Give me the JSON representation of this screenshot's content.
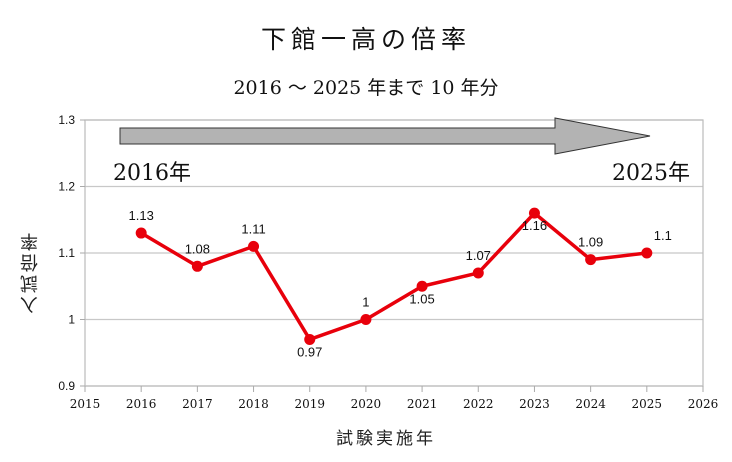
{
  "chart_data": {
    "type": "line",
    "title": "下館一高の倍率",
    "subtitle": "2016 ～ 2025 年まで 10 年分",
    "xlabel": "試験実施年",
    "ylabel": "入試倍率",
    "x": [
      2016,
      2017,
      2018,
      2019,
      2020,
      2021,
      2022,
      2023,
      2024,
      2025
    ],
    "series": [
      {
        "name": "入試倍率",
        "values": [
          1.13,
          1.08,
          1.11,
          0.97,
          1.0,
          1.05,
          1.07,
          1.16,
          1.09,
          1.1
        ],
        "color": "#e8000b"
      }
    ],
    "data_labels": [
      "1.13",
      "1.08",
      "1.11",
      "0.97",
      "1",
      "1.05",
      "1.07",
      "1.16",
      "1.09",
      "1.1"
    ],
    "xlim": [
      2015,
      2026
    ],
    "ylim": [
      0.9,
      1.3
    ],
    "x_ticks": [
      "2015",
      "2016",
      "2017",
      "2018",
      "2019",
      "2020",
      "2021",
      "2022",
      "2023",
      "2024",
      "2025",
      "2026"
    ],
    "y_ticks": [
      "0.9",
      "1",
      "1.1",
      "1.2",
      "1.3"
    ],
    "grid": true,
    "legend": "none",
    "annotations": {
      "arrow_start_label": "2016年",
      "arrow_end_label": "2025年",
      "arrow_color": "#b3b3b3"
    }
  }
}
